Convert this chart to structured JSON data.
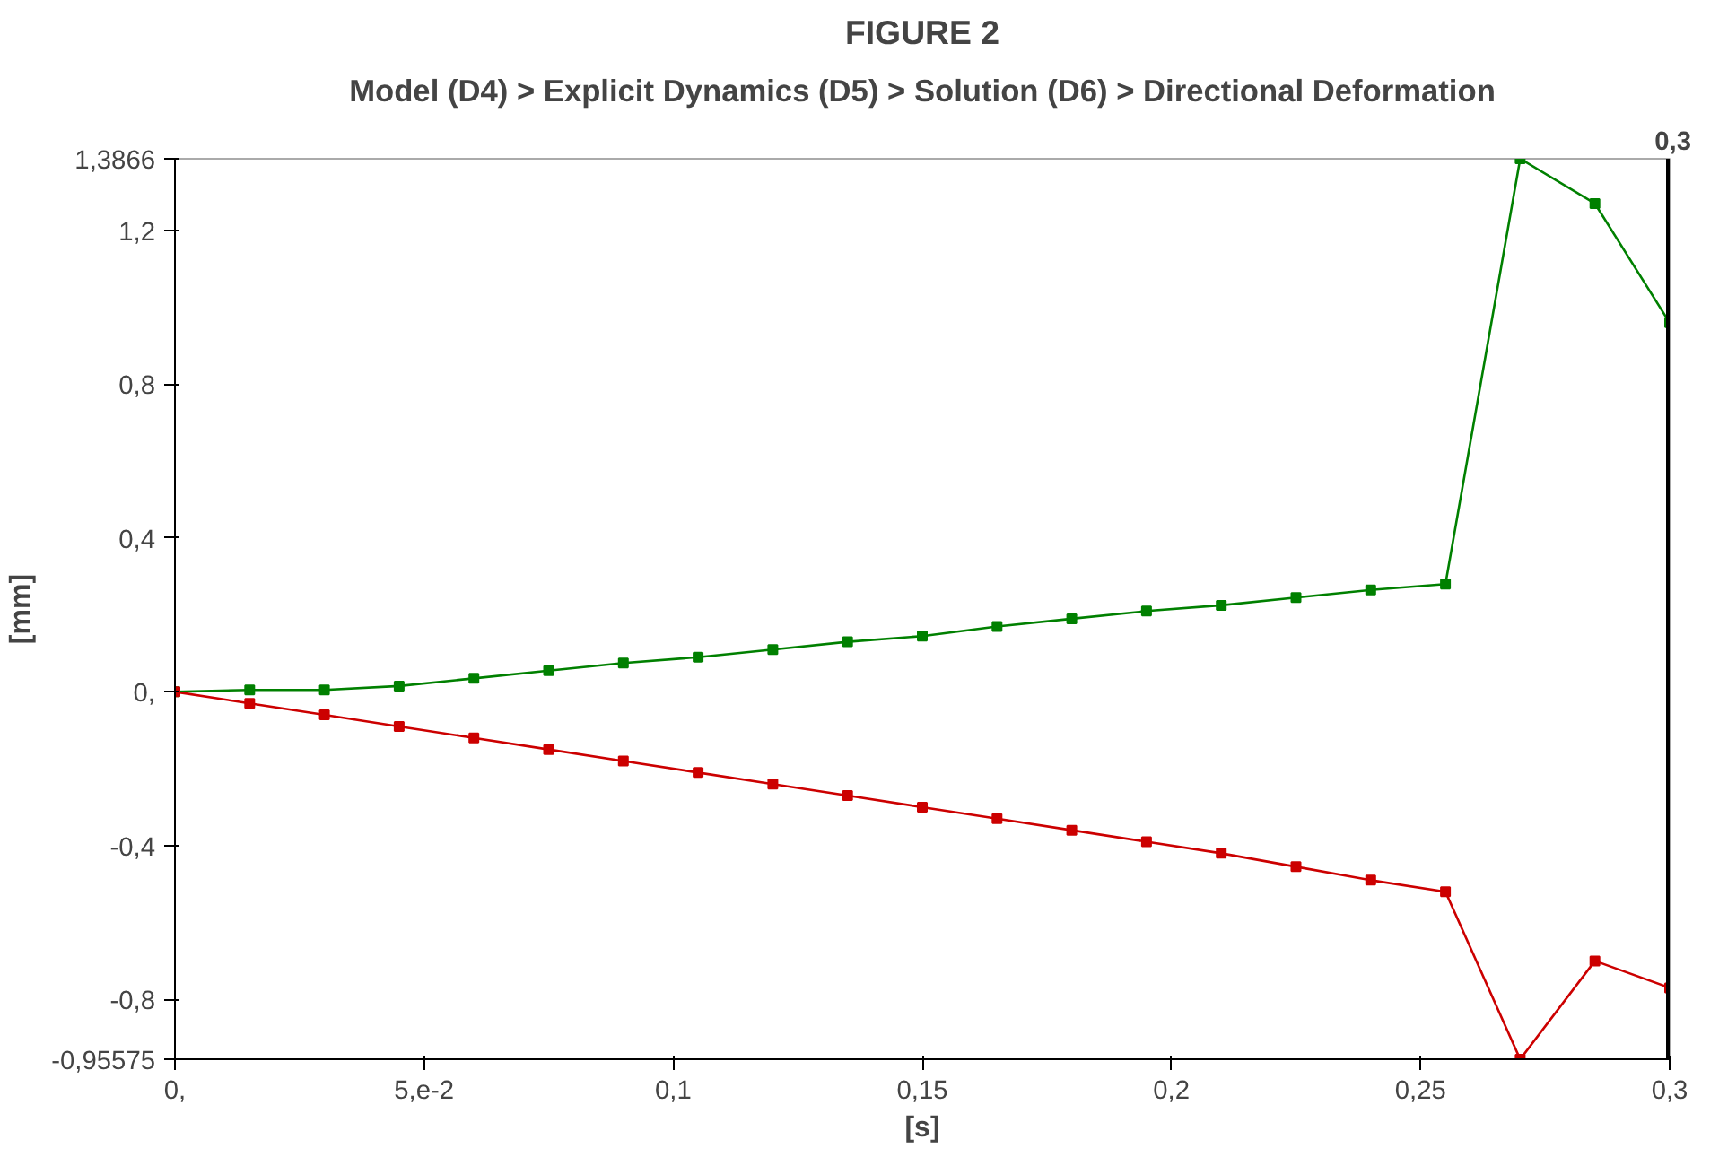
{
  "chart_data": {
    "type": "line",
    "title": "FIGURE 2",
    "subtitle": "Model (D4) > Explicit Dynamics (D5) > Solution (D6) > Directional Deformation",
    "xlabel": "[s]",
    "ylabel": "[mm]",
    "x": [
      0,
      0.015,
      0.03,
      0.045,
      0.06,
      0.075,
      0.09,
      0.105,
      0.12,
      0.135,
      0.15,
      0.165,
      0.18,
      0.195,
      0.21,
      0.225,
      0.24,
      0.255,
      0.27,
      0.285,
      0.3
    ],
    "series": [
      {
        "color": "#008000",
        "values": [
          0,
          0.005,
          0.005,
          0.015,
          0.035,
          0.055,
          0.075,
          0.09,
          0.11,
          0.13,
          0.145,
          0.17,
          0.19,
          0.21,
          0.225,
          0.245,
          0.265,
          0.28,
          1.3866,
          1.27,
          0.96
        ]
      },
      {
        "color": "#cc0000",
        "values": [
          0,
          -0.03,
          -0.06,
          -0.09,
          -0.12,
          -0.15,
          -0.18,
          -0.21,
          -0.24,
          -0.27,
          -0.3,
          -0.33,
          -0.36,
          -0.39,
          -0.42,
          -0.455,
          -0.49,
          -0.52,
          -0.95575,
          -0.7,
          -0.77
        ]
      }
    ],
    "xlim": [
      0,
      0.3
    ],
    "ylim": [
      -0.95575,
      1.3866
    ],
    "xticks": [
      {
        "value": 0,
        "label": "0,"
      },
      {
        "value": 0.05,
        "label": "5,e-2"
      },
      {
        "value": 0.1,
        "label": "0,1"
      },
      {
        "value": 0.15,
        "label": "0,15"
      },
      {
        "value": 0.2,
        "label": "0,2"
      },
      {
        "value": 0.25,
        "label": "0,25"
      },
      {
        "value": 0.3,
        "label": "0,3"
      }
    ],
    "yticks": [
      {
        "value": -0.95575,
        "label": "-0,95575"
      },
      {
        "value": -0.8,
        "label": "-0,8"
      },
      {
        "value": -0.4,
        "label": "-0,4"
      },
      {
        "value": 0,
        "label": "0,"
      },
      {
        "value": 0.4,
        "label": "0,4"
      },
      {
        "value": 0.8,
        "label": "0,8"
      },
      {
        "value": 1.2,
        "label": "1,2"
      },
      {
        "value": 1.3866,
        "label": "1,3866"
      }
    ],
    "ref_lines": [
      {
        "axis": "x",
        "value": 0.3,
        "label": "0,3",
        "color": "#000000"
      }
    ],
    "marker": "square",
    "grid": false
  }
}
